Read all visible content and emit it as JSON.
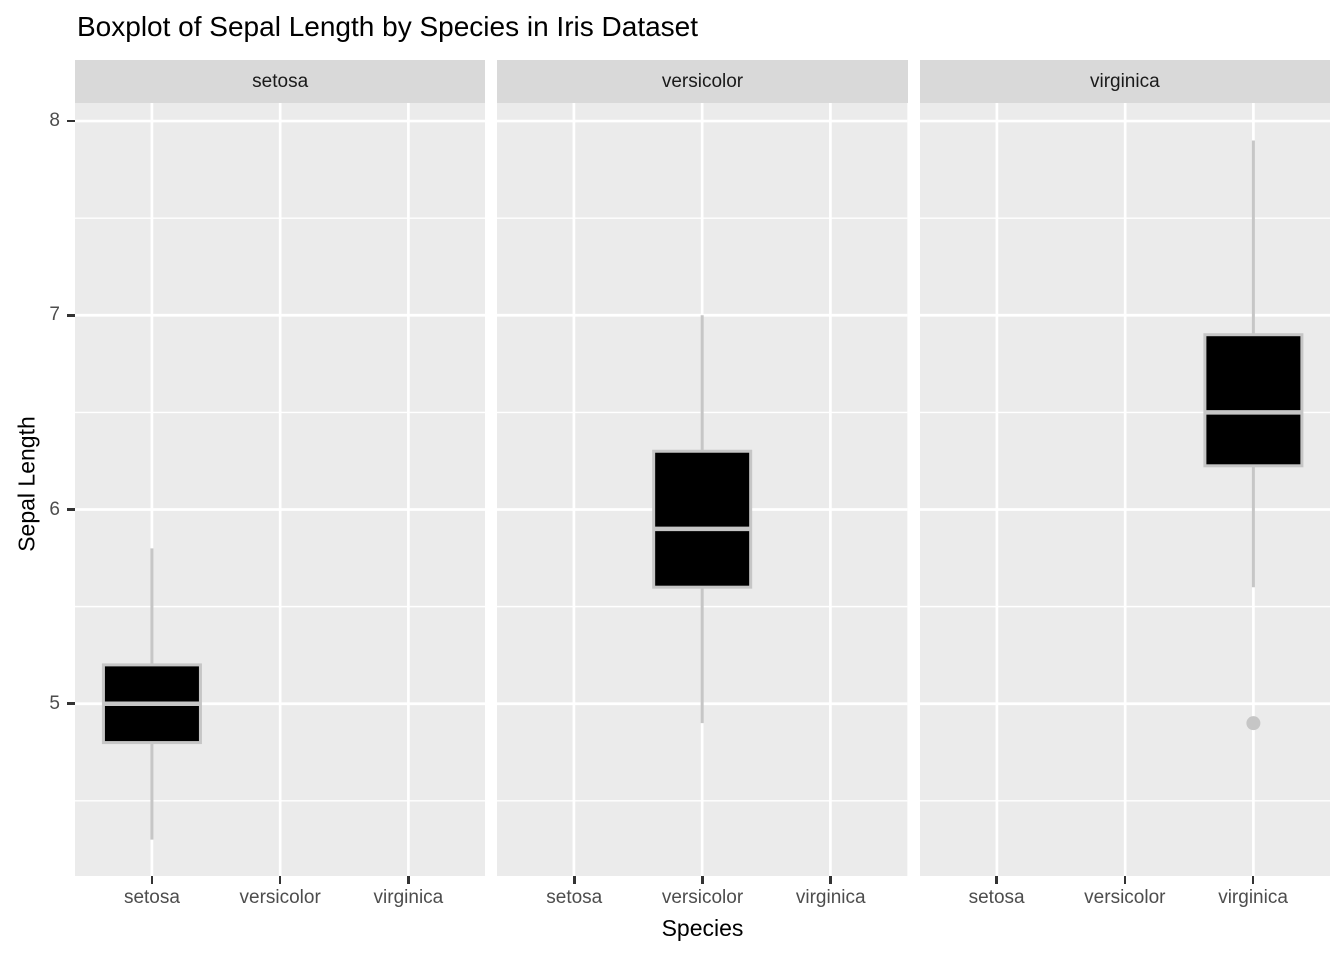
{
  "title": "Boxplot of Sepal Length by Species in Iris Dataset",
  "axes": {
    "x_label": "Species",
    "y_label": "Sepal Length",
    "y_tick_labels": [
      "8",
      "7",
      "6",
      "5"
    ],
    "x_tick_labels": [
      "setosa",
      "versicolor",
      "virginica"
    ]
  },
  "colors": {
    "background": "#ffffff",
    "panel_bg": "#ebebeb",
    "strip_bg": "#d9d9d9",
    "grid": "#ffffff",
    "box_fill": "#000000",
    "box_stroke": "#c6c6c6",
    "median_stroke": "#c6c6c6",
    "whisker_stroke": "#c6c6c6",
    "outlier_fill": "#c6c6c6",
    "axis_text": "#4d4d4d",
    "strip_text": "#1a1a1a",
    "tick_mark": "#333333",
    "title_text": "#000000"
  },
  "chart_data": {
    "type": "boxplot",
    "title": "Boxplot of Sepal Length by Species in Iris Dataset",
    "xlabel": "Species",
    "ylabel": "Sepal Length",
    "ylim": [
      4.113,
      8.093
    ],
    "y_major_gridlines": [
      5,
      6,
      7,
      8
    ],
    "y_minor_gridlines": [
      4.5,
      5.5,
      6.5,
      7.5
    ],
    "y_axis_ticks": [
      8,
      7,
      6,
      5
    ],
    "categories": [
      "setosa",
      "versicolor",
      "virginica"
    ],
    "grid": "on",
    "legend": "none",
    "facets": [
      {
        "label": "setosa",
        "category": "setosa",
        "stats": {
          "whisker_low": 4.3,
          "q1": 4.8,
          "median": 5.0,
          "q3": 5.2,
          "whisker_high": 5.8
        },
        "outliers": []
      },
      {
        "label": "versicolor",
        "category": "versicolor",
        "stats": {
          "whisker_low": 4.9,
          "q1": 5.6,
          "median": 5.9,
          "q3": 6.3,
          "whisker_high": 7.0
        },
        "outliers": []
      },
      {
        "label": "virginica",
        "category": "virginica",
        "stats": {
          "whisker_low": 5.6,
          "q1": 6.225,
          "median": 6.5,
          "q3": 6.9,
          "whisker_high": 7.9
        },
        "outliers": [
          4.9
        ]
      }
    ]
  }
}
